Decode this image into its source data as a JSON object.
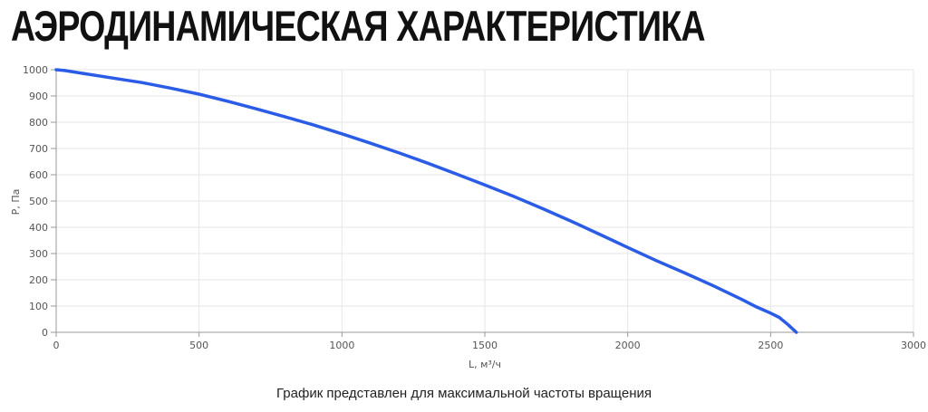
{
  "title": "АЭРОДИНАМИЧЕСКАЯ ХАРАКТЕРИСТИКА",
  "caption": "График представлен для максимальной частоты вращения",
  "chart_data": {
    "type": "line",
    "xlabel": "L, м³/ч",
    "ylabel": "P, Па",
    "xlim": [
      0,
      3000
    ],
    "ylim": [
      0,
      1000
    ],
    "xticks": [
      0,
      500,
      1000,
      1500,
      2000,
      2500,
      3000
    ],
    "yticks": [
      0,
      100,
      200,
      300,
      400,
      500,
      600,
      700,
      800,
      900,
      1000
    ],
    "grid": true,
    "color": "#2b5ce6",
    "series": [
      {
        "x": [
          0,
          30,
          100,
          200,
          300,
          400,
          500,
          600,
          700,
          800,
          900,
          1000,
          1100,
          1200,
          1300,
          1400,
          1500,
          1600,
          1700,
          1800,
          1900,
          2000,
          2100,
          2200,
          2300,
          2400,
          2450,
          2500,
          2530,
          2560,
          2590
        ],
        "y": [
          1000,
          997,
          985,
          968,
          951,
          930,
          907,
          880,
          851,
          821,
          790,
          756,
          720,
          683,
          644,
          603,
          561,
          518,
          472,
          424,
          374,
          323,
          273,
          226,
          177,
          125,
          97,
          73,
          57,
          30,
          0
        ]
      }
    ]
  }
}
